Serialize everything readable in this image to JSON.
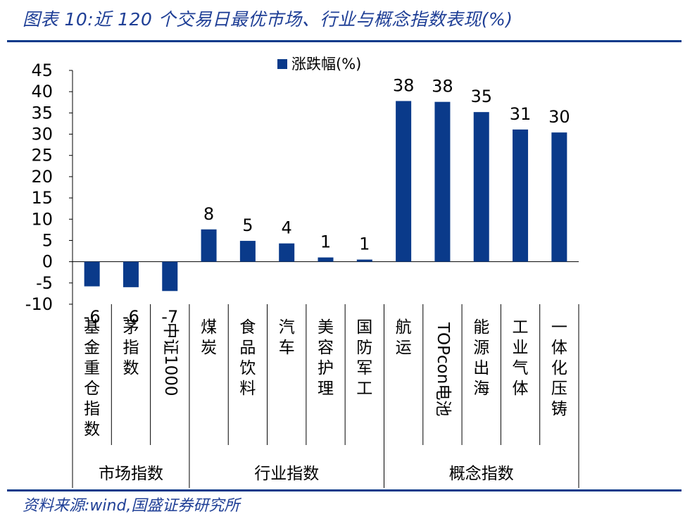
{
  "title": "图表 10:近 120 个交易日最优市场、行业与概念指数表现(%)",
  "source": "资料来源:wind,国盛证券研究所",
  "colors": {
    "bar": "#0a3a8a",
    "text": "#1f3f96",
    "rule": "#0a3a8a"
  },
  "chart_data": {
    "type": "bar",
    "title": "图表 10:近 120 个交易日最优市场、行业与概念指数表现(%)",
    "xlabel": "",
    "ylabel": "",
    "ylim": [
      -10,
      45
    ],
    "yticks": [
      45,
      40,
      35,
      30,
      25,
      20,
      15,
      10,
      5,
      0,
      -5,
      -10
    ],
    "legend": {
      "label": "涨跌幅(%)",
      "position": "top-center"
    },
    "categories": [
      "基金重仓指数",
      "茅指数",
      "中证1000",
      "煤炭",
      "食品饮料",
      "汽车",
      "美容护理",
      "国防军工",
      "航运",
      "TOPcon电池",
      "能源出海",
      "工业气体",
      "一体化压铸"
    ],
    "values": [
      -5.8,
      -6.0,
      -6.9,
      7.6,
      4.9,
      4.3,
      1.0,
      0.5,
      37.8,
      37.6,
      35.2,
      31.1,
      30.4
    ],
    "data_labels": [
      "-6",
      "-6",
      "-7",
      "8",
      "5",
      "4",
      "1",
      "1",
      "38",
      "38",
      "35",
      "31",
      "30"
    ],
    "groups": [
      {
        "label": "市场指数",
        "count": 3
      },
      {
        "label": "行业指数",
        "count": 5
      },
      {
        "label": "概念指数",
        "count": 5
      }
    ]
  }
}
